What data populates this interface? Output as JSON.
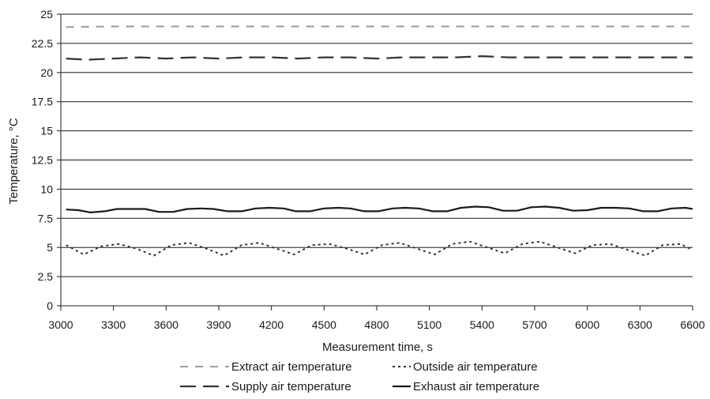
{
  "chart_data": {
    "type": "line",
    "title": "",
    "xlabel": "Measurement time, s",
    "ylabel": "Temperature, °C",
    "xlim": [
      3000,
      6600
    ],
    "ylim": [
      0,
      25
    ],
    "x_ticks": [
      3000,
      3300,
      3600,
      3900,
      4200,
      4500,
      4800,
      5100,
      5400,
      5700,
      6000,
      6300,
      6600
    ],
    "y_ticks": [
      "0",
      "2.5",
      "5",
      "7.5",
      "10",
      "12.5",
      "15",
      "17.5",
      "20",
      "22.5",
      "25"
    ],
    "grid": "horizontal",
    "legend_position": "bottom",
    "series": [
      {
        "name": "Extract air temperature",
        "style": "short-dash",
        "color": "#9a9a9a",
        "x": [
          3030,
          3300,
          3600,
          3900,
          4200,
          4500,
          4800,
          5100,
          5400,
          5700,
          6000,
          6300,
          6600
        ],
        "y": [
          23.9,
          23.95,
          23.95,
          23.95,
          23.95,
          23.95,
          23.95,
          23.95,
          23.95,
          23.95,
          23.95,
          23.95,
          23.95
        ]
      },
      {
        "name": "Supply air temperature",
        "style": "long-dash",
        "color": "#333333",
        "x": [
          3030,
          3150,
          3300,
          3450,
          3600,
          3750,
          3900,
          4050,
          4200,
          4350,
          4500,
          4650,
          4800,
          4950,
          5100,
          5250,
          5400,
          5550,
          5700,
          5850,
          6000,
          6150,
          6300,
          6450,
          6600
        ],
        "y": [
          21.2,
          21.1,
          21.2,
          21.3,
          21.2,
          21.3,
          21.2,
          21.3,
          21.3,
          21.2,
          21.3,
          21.3,
          21.2,
          21.3,
          21.3,
          21.3,
          21.4,
          21.3,
          21.3,
          21.3,
          21.3,
          21.3,
          21.3,
          21.3,
          21.3
        ]
      },
      {
        "name": "Outside air temperature",
        "style": "dotted",
        "color": "#333333",
        "x": [
          3030,
          3130,
          3230,
          3330,
          3430,
          3530,
          3630,
          3730,
          3830,
          3930,
          4030,
          4130,
          4230,
          4330,
          4430,
          4530,
          4630,
          4730,
          4830,
          4930,
          5030,
          5130,
          5230,
          5330,
          5430,
          5530,
          5630,
          5730,
          5830,
          5930,
          6030,
          6130,
          6230,
          6330,
          6430,
          6530,
          6600
        ],
        "y": [
          5.2,
          4.4,
          5.1,
          5.3,
          4.9,
          4.3,
          5.2,
          5.4,
          4.9,
          4.3,
          5.2,
          5.4,
          4.9,
          4.4,
          5.2,
          5.3,
          4.9,
          4.4,
          5.2,
          5.4,
          4.9,
          4.4,
          5.3,
          5.5,
          5.0,
          4.5,
          5.3,
          5.5,
          5.0,
          4.5,
          5.2,
          5.3,
          4.8,
          4.3,
          5.2,
          5.3,
          4.8
        ]
      },
      {
        "name": "Exhaust air temperature",
        "style": "solid",
        "color": "#1a1a1a",
        "x": [
          3030,
          3100,
          3170,
          3250,
          3320,
          3400,
          3480,
          3560,
          3640,
          3720,
          3800,
          3870,
          3950,
          4030,
          4110,
          4190,
          4270,
          4340,
          4420,
          4500,
          4580,
          4650,
          4730,
          4810,
          4890,
          4960,
          5040,
          5120,
          5200,
          5280,
          5360,
          5440,
          5520,
          5600,
          5680,
          5760,
          5840,
          5920,
          6000,
          6080,
          6160,
          6240,
          6320,
          6400,
          6480,
          6560,
          6600
        ],
        "y": [
          8.25,
          8.2,
          8.0,
          8.1,
          8.3,
          8.3,
          8.3,
          8.05,
          8.05,
          8.3,
          8.35,
          8.3,
          8.1,
          8.1,
          8.35,
          8.4,
          8.35,
          8.1,
          8.1,
          8.35,
          8.4,
          8.35,
          8.1,
          8.1,
          8.35,
          8.4,
          8.35,
          8.1,
          8.1,
          8.4,
          8.5,
          8.45,
          8.15,
          8.15,
          8.45,
          8.5,
          8.4,
          8.15,
          8.2,
          8.4,
          8.4,
          8.35,
          8.1,
          8.1,
          8.35,
          8.4,
          8.3
        ]
      }
    ],
    "legend_rows": [
      [
        "Extract air temperature",
        "Outside air temperature"
      ],
      [
        "Supply air temperature",
        "Exhaust air temperature"
      ]
    ]
  }
}
